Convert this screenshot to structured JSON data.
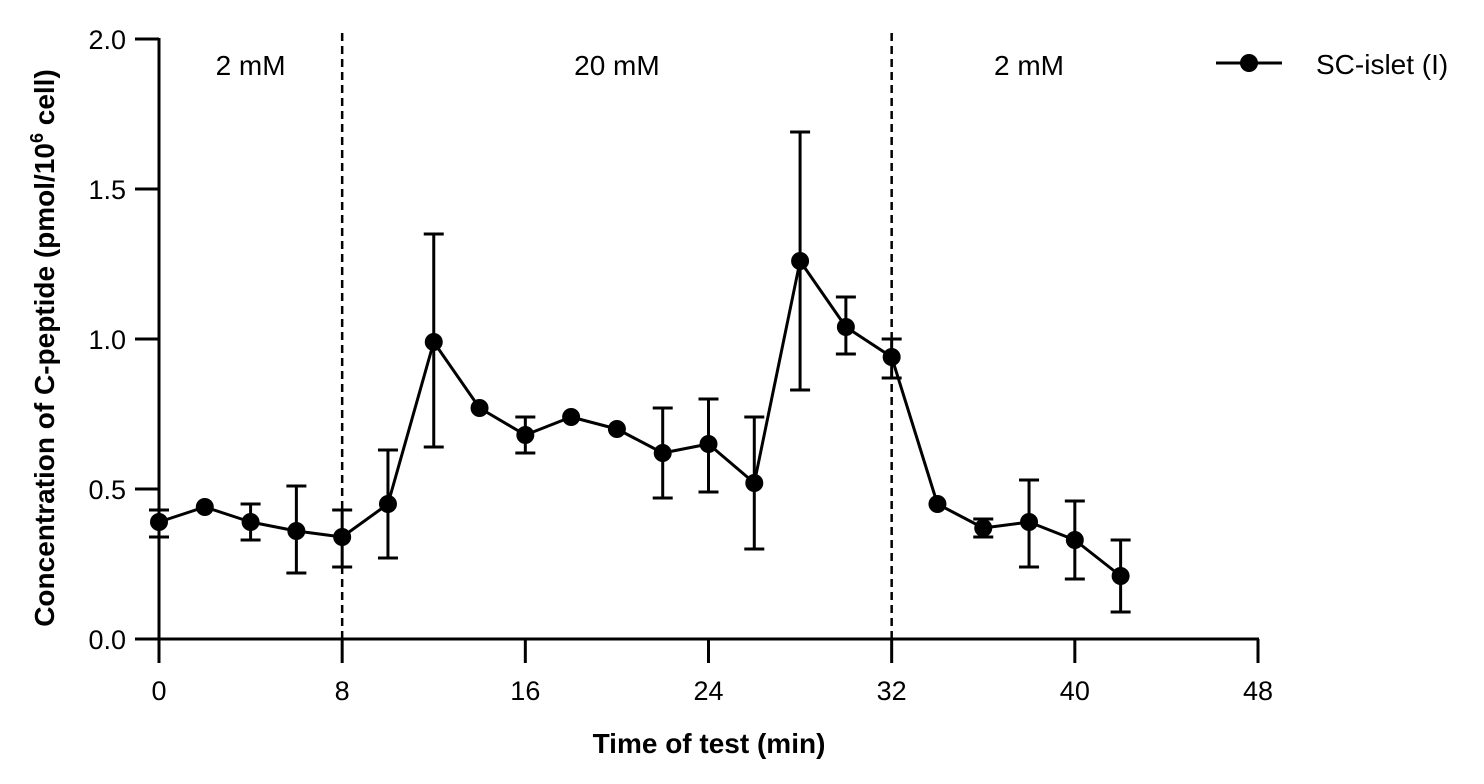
{
  "chart_data": {
    "type": "line",
    "title": "",
    "xlabel": "Time of test (min)",
    "ylabel": "Concentration of C-peptide (pmol/10^6 cell)",
    "ylabel_main": "Concentration of C-peptide (pmol/10",
    "ylabel_sup": "6",
    "ylabel_tail": " cell)",
    "xlim": [
      0,
      48
    ],
    "ylim": [
      0,
      2.0
    ],
    "xticks": [
      0,
      8,
      16,
      24,
      32,
      40,
      48
    ],
    "xtick_labels": [
      "0",
      "8",
      "16",
      "24",
      "32",
      "40",
      "48"
    ],
    "yticks": [
      0,
      0.5,
      1.0,
      1.5,
      2.0
    ],
    "ytick_labels": [
      "0.0",
      "0.5",
      "1.0",
      "1.5",
      "2.0"
    ],
    "grid": false,
    "legend_position": "top-right",
    "regions": [
      {
        "label": "2 mM",
        "start": 0,
        "end": 8
      },
      {
        "label": "20 mM",
        "start": 8,
        "end": 32
      },
      {
        "label": "2 mM",
        "start": 32,
        "end": 48
      }
    ],
    "vlines": [
      8,
      32
    ],
    "series": [
      {
        "name": "SC-islet (I)",
        "color": "#000000",
        "x": [
          0,
          2,
          4,
          6,
          8,
          10,
          12,
          14,
          16,
          18,
          20,
          22,
          24,
          26,
          28,
          30,
          32,
          34,
          36,
          38,
          40,
          42
        ],
        "y": [
          0.39,
          0.44,
          0.39,
          0.36,
          0.34,
          0.45,
          0.99,
          0.77,
          0.68,
          0.74,
          0.7,
          0.62,
          0.65,
          0.52,
          1.26,
          1.04,
          0.94,
          0.45,
          0.37,
          0.39,
          0.33,
          0.21
        ],
        "err_upper": [
          0.43,
          null,
          0.45,
          0.51,
          0.43,
          0.63,
          1.35,
          null,
          0.74,
          null,
          null,
          0.77,
          0.8,
          0.74,
          1.69,
          1.14,
          1.0,
          null,
          0.4,
          0.53,
          0.46,
          0.33
        ],
        "err_lower": [
          0.34,
          null,
          0.33,
          0.22,
          0.24,
          0.27,
          0.64,
          null,
          0.62,
          null,
          null,
          0.47,
          0.49,
          0.3,
          0.83,
          0.95,
          0.87,
          null,
          0.34,
          0.24,
          0.2,
          0.09
        ]
      }
    ]
  }
}
